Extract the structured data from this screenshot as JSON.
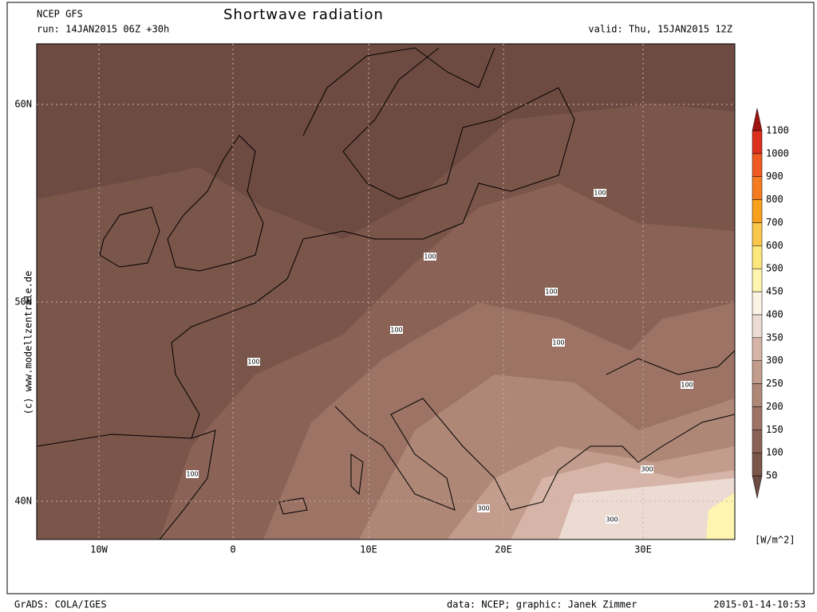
{
  "header": {
    "model": "NCEP GFS",
    "run": "run: 14JAN2015 06Z +30h",
    "title": "Shortwave radiation",
    "valid": "valid: Thu, 15JAN2015 12Z"
  },
  "map": {
    "lat_labels": [
      "60N",
      "50N",
      "40N"
    ],
    "lon_labels": [
      "10W",
      "0",
      "10E",
      "20E",
      "30E"
    ],
    "contour_labels": [
      100,
      100,
      100,
      100,
      100,
      100,
      100,
      100,
      300,
      300,
      300
    ]
  },
  "colorbar": {
    "levels": [
      50,
      100,
      150,
      200,
      250,
      300,
      350,
      400,
      450,
      500,
      600,
      700,
      800,
      900,
      1000,
      1100
    ],
    "colors": [
      "#6e4b42",
      "#7a554a",
      "#8a6356",
      "#9c7365",
      "#ae8777",
      "#c29c8c",
      "#d6b5a8",
      "#ecdbd3",
      "#fbf3e4",
      "#fff5b0",
      "#fde67a",
      "#fbc74a",
      "#f9a01d",
      "#f57b20",
      "#ee5a22",
      "#dc2f1c",
      "#a0140f"
    ],
    "unit": "[W/m^2]"
  },
  "watermark": "(c)  www.modellzentrale.de",
  "footer": {
    "left": "GrADS: COLA/IGES",
    "center": "data: NCEP; graphic: Janek Zimmer",
    "right": "2015-01-14-10:53"
  }
}
